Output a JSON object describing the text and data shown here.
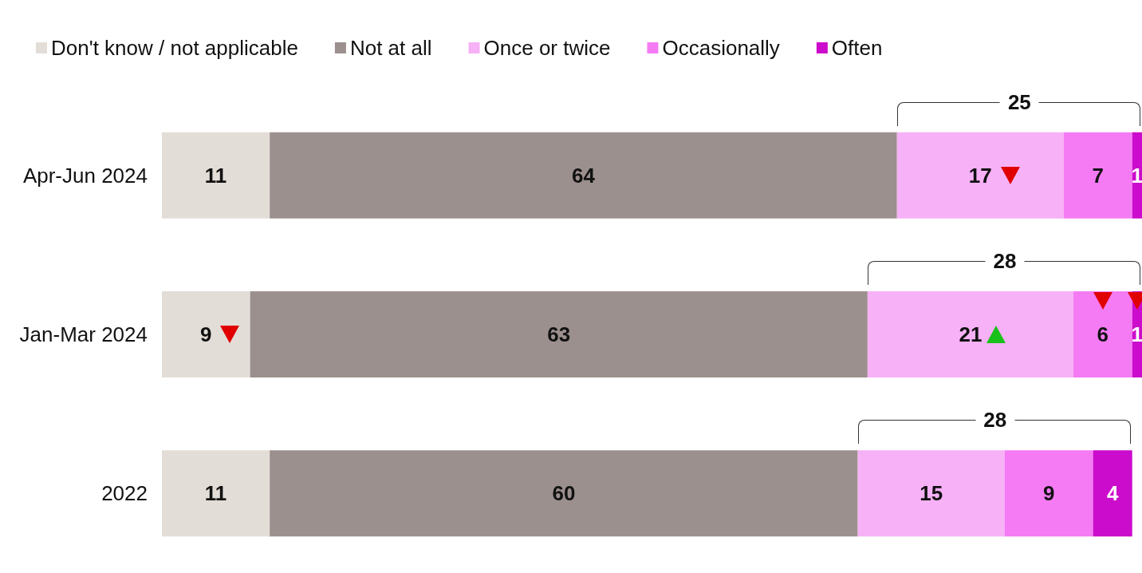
{
  "chart_data": {
    "type": "bar",
    "orientation": "horizontal",
    "stacked": true,
    "data_labels": true,
    "legend": "top left",
    "tick_labels": "y",
    "categories": [
      "Apr-Jun 2024",
      "Jan-Mar 2024",
      "2022"
    ],
    "series": [
      {
        "name": "Don't know / not applicable",
        "color": "#e3ddd7",
        "values": [
          11,
          9,
          11
        ]
      },
      {
        "name": "Not at all",
        "color": "#9c908e",
        "values": [
          64,
          63,
          60
        ]
      },
      {
        "name": "Once or twice",
        "color": "#f7b1f7",
        "values": [
          17,
          21,
          15
        ]
      },
      {
        "name": "Occasionally",
        "color": "#f57bf5",
        "values": [
          7,
          6,
          9
        ]
      },
      {
        "name": "Often",
        "color": "#cc0ccc",
        "values": [
          1,
          1,
          4
        ]
      }
    ],
    "annotations": [
      "25",
      "28",
      "28"
    ]
  }
}
